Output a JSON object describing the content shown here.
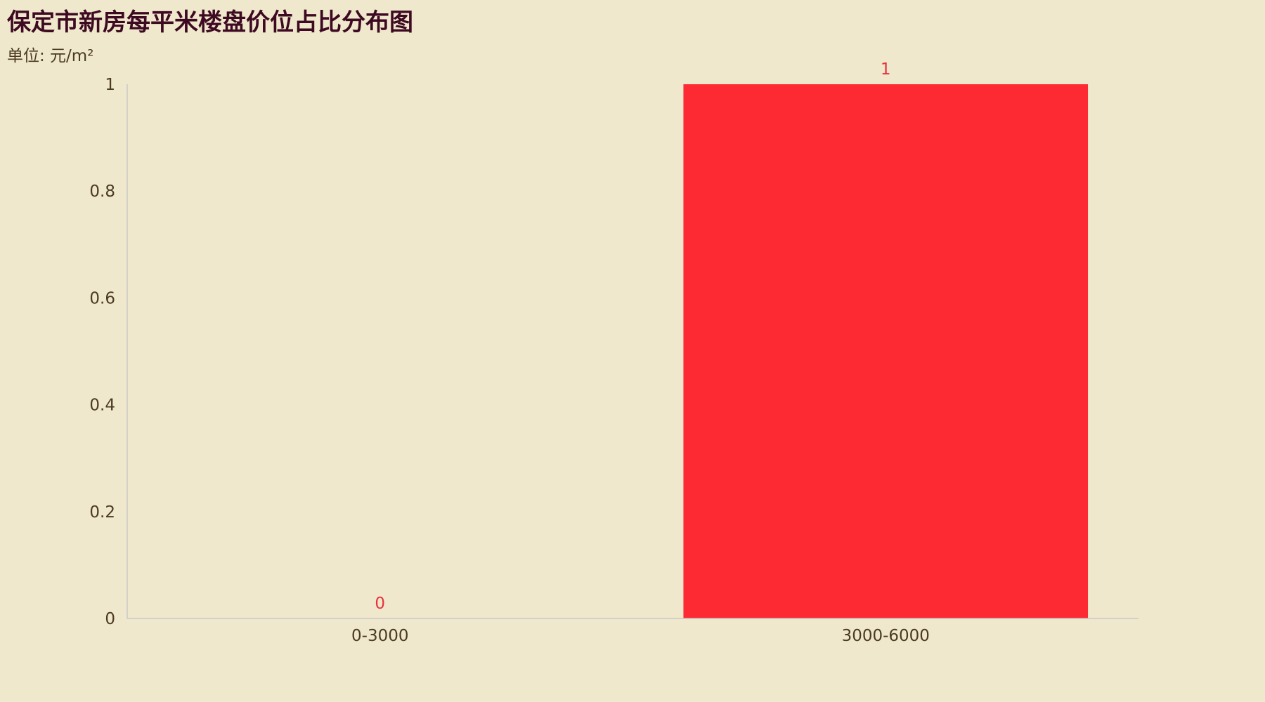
{
  "chart_data": {
    "type": "bar",
    "title": "保定市新房每平米楼盘价位占比分布图",
    "subtitle": "单位: 元/m²",
    "categories": [
      "0-3000",
      "3000-6000"
    ],
    "values": [
      0,
      1
    ],
    "ylim": [
      0,
      1
    ],
    "yticks": [
      "0",
      "0.2",
      "0.4",
      "0.6",
      "0.8",
      "1"
    ],
    "grid": false,
    "bar_color": "#fe2a33",
    "label_color": "#e8323c",
    "axis_color": "#c8c8c8"
  }
}
